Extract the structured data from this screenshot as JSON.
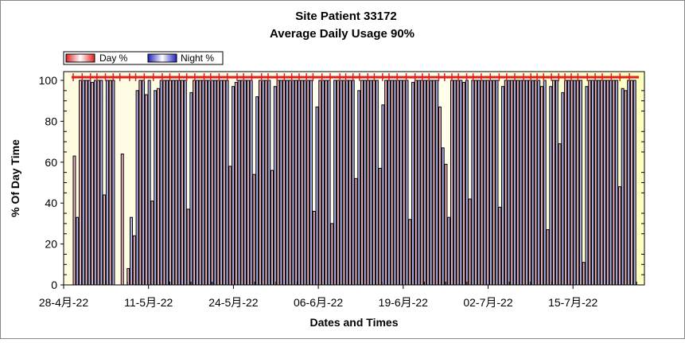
{
  "chart_data": {
    "type": "bar",
    "title": "Site Patient 33172",
    "subtitle": "Average Daily Usage 90%",
    "xlabel": "Dates and Times",
    "ylabel": "% Of Day Time",
    "ylim": [
      0,
      100
    ],
    "yticks": [
      "0",
      "20",
      "40",
      "60",
      "80",
      "100"
    ],
    "xtick_labels": [
      "28-4月-22",
      "11-5月-22",
      "24-5月-22",
      "06-6月-22",
      "19-6月-22",
      "02-7月-22",
      "15-7月-22"
    ],
    "legend": [
      {
        "name": "Day %",
        "color": "#e84040"
      },
      {
        "name": "Night %",
        "color": "#3030c8"
      }
    ],
    "legend_position": "top-left",
    "series_colors": {
      "day": "#e8b0b8",
      "night": "#b0b0e8"
    },
    "bars_alternating_day_night": [
      63,
      33,
      100,
      100,
      100,
      100,
      99,
      100,
      100,
      100,
      44,
      100,
      100,
      100,
      0,
      0,
      64,
      0,
      8,
      33,
      24,
      95,
      100,
      100,
      93,
      100,
      41,
      95,
      96,
      100,
      100,
      100,
      100,
      100,
      100,
      100,
      100,
      100,
      37,
      94,
      100,
      100,
      100,
      100,
      100,
      100,
      100,
      100,
      100,
      100,
      100,
      100,
      58,
      97,
      99,
      100,
      100,
      100,
      100,
      100,
      54,
      92,
      100,
      100,
      100,
      100,
      56,
      97,
      100,
      100,
      100,
      100,
      100,
      100,
      100,
      100,
      100,
      100,
      100,
      100,
      36,
      87,
      100,
      100,
      100,
      100,
      30,
      100,
      100,
      100,
      100,
      100,
      100,
      100,
      52,
      95,
      100,
      100,
      100,
      100,
      100,
      100,
      57,
      88,
      100,
      100,
      100,
      100,
      100,
      100,
      100,
      100,
      32,
      99,
      100,
      100,
      100,
      100,
      100,
      100,
      100,
      100,
      87,
      67,
      59,
      33,
      100,
      100,
      100,
      100,
      99,
      100,
      42,
      100,
      100,
      100,
      100,
      100,
      100,
      100,
      100,
      100,
      38,
      97,
      100,
      100,
      100,
      100,
      100,
      100,
      100,
      100,
      100,
      100,
      100,
      100,
      97,
      100,
      27,
      97,
      100,
      100,
      69,
      94,
      100,
      100,
      100,
      100,
      100,
      100,
      11,
      97,
      100,
      100,
      100,
      100,
      100,
      100,
      100,
      100,
      100,
      100,
      48,
      96,
      95,
      100,
      100,
      100
    ]
  }
}
